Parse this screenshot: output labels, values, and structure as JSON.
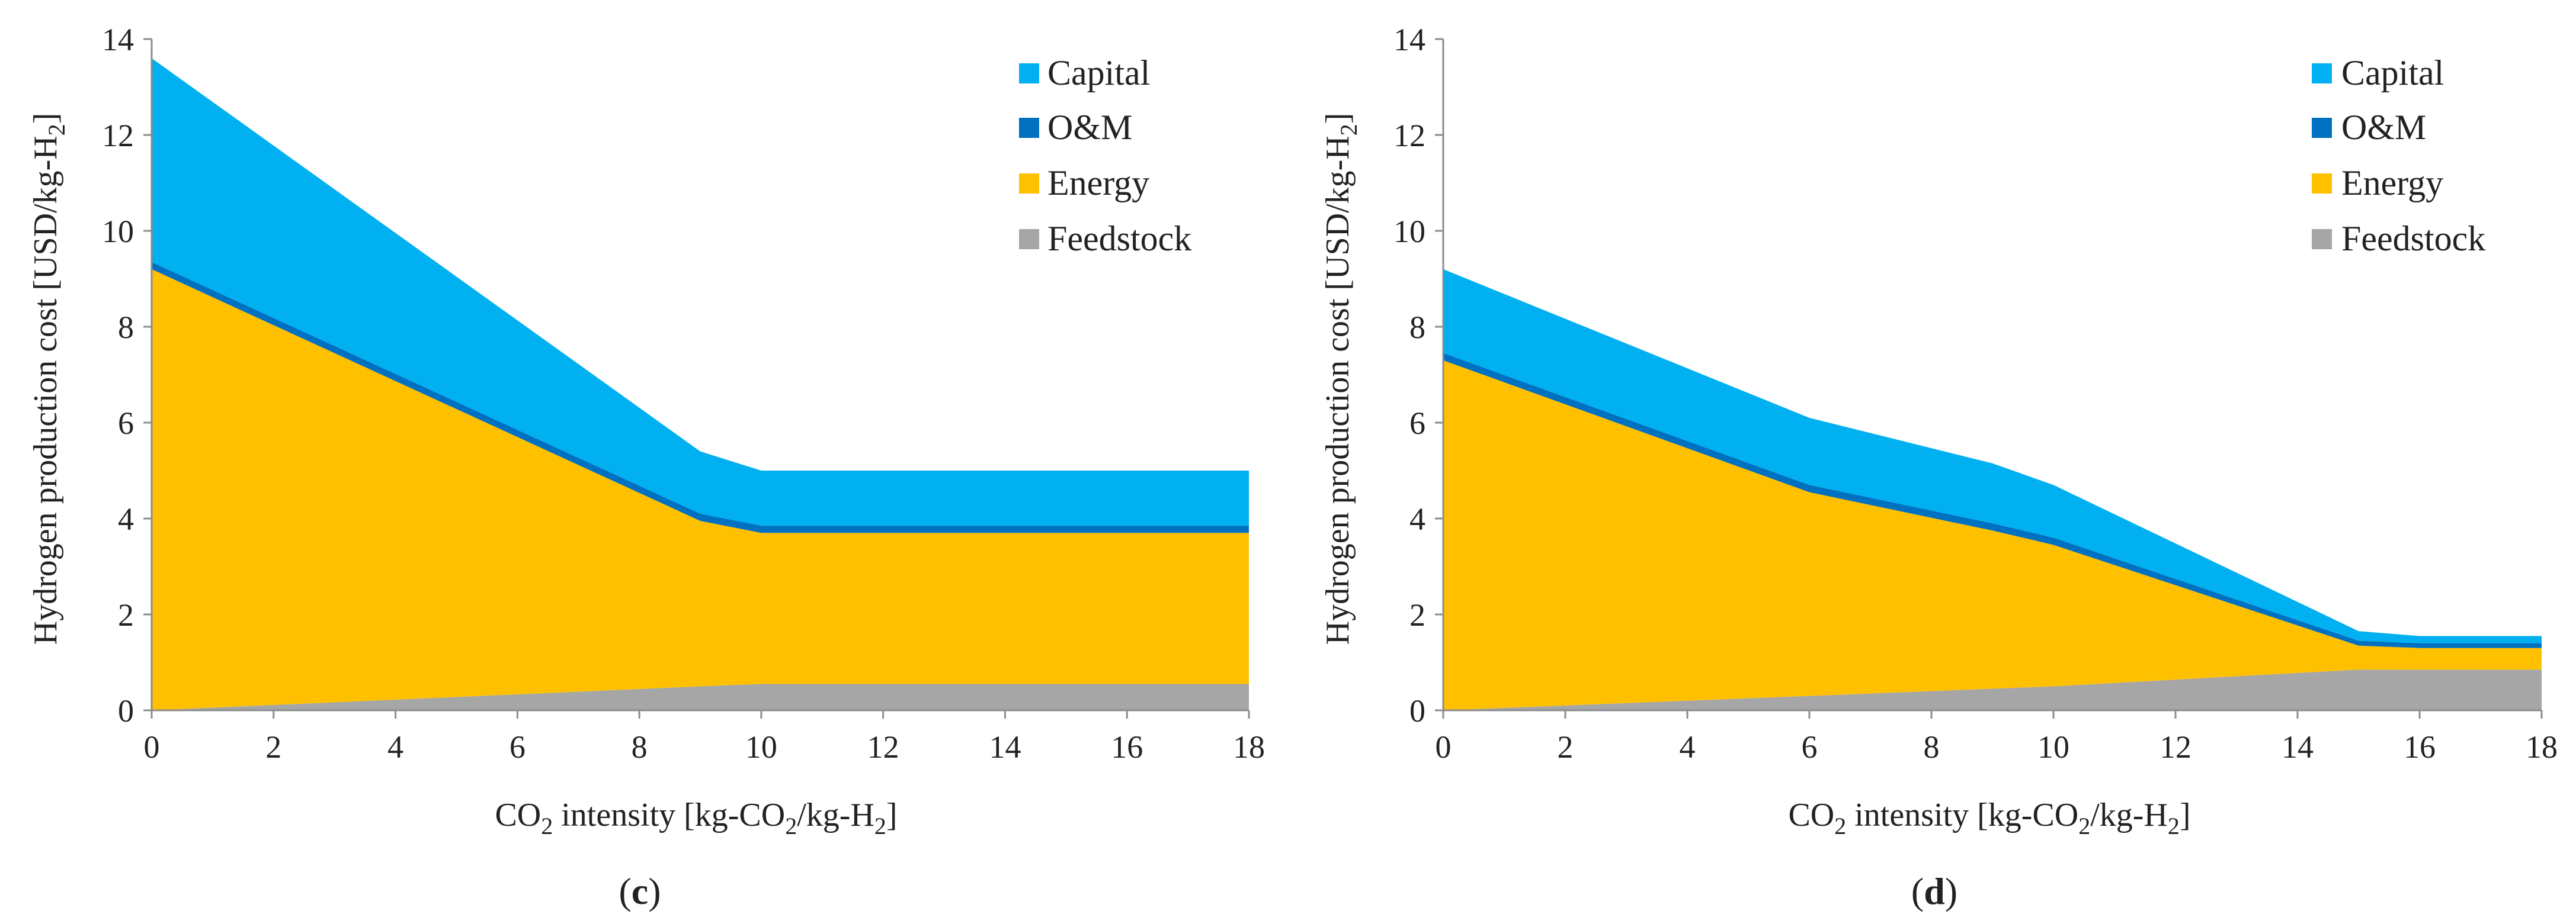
{
  "colors": {
    "Capital": "#00b0f0",
    "O&M": "#0070c0",
    "Energy": "#ffc000",
    "Feedstock": "#a6a6a6",
    "axis": "#8c8c8c"
  },
  "chart_data": [
    {
      "type": "area",
      "stacked": true,
      "panel_label": "(c)",
      "xlabel": "CO2 intensity [kg-CO2/kg-H2]",
      "ylabel": "Hydrogen production cost [USD/kg-H2]",
      "xlim": [
        0,
        18
      ],
      "ylim": [
        0,
        14
      ],
      "x_ticks": [
        0,
        2,
        4,
        6,
        8,
        10,
        12,
        14,
        16,
        18
      ],
      "y_ticks": [
        0,
        2,
        4,
        6,
        8,
        10,
        12,
        14
      ],
      "grid": false,
      "legend_position": "top-right",
      "x": [
        0,
        9,
        10,
        18
      ],
      "series": [
        {
          "name": "Feedstock",
          "values": [
            0.0,
            0.5,
            0.55,
            0.55
          ]
        },
        {
          "name": "Energy",
          "values": [
            9.2,
            3.45,
            3.15,
            3.15
          ]
        },
        {
          "name": "O&M",
          "values": [
            0.15,
            0.15,
            0.15,
            0.15
          ]
        },
        {
          "name": "Capital",
          "values": [
            4.25,
            1.3,
            1.15,
            1.15
          ]
        }
      ],
      "legend": [
        "Capital",
        "O&M",
        "Energy",
        "Feedstock"
      ]
    },
    {
      "type": "area",
      "stacked": true,
      "panel_label": "(d)",
      "xlabel": "CO2 intensity [kg-CO2/kg-H2]",
      "ylabel": "Hydrogen production cost [USD/kg-H2]",
      "xlim": [
        0,
        18
      ],
      "ylim": [
        0,
        14
      ],
      "x_ticks": [
        0,
        2,
        4,
        6,
        8,
        10,
        12,
        14,
        16,
        18
      ],
      "y_ticks": [
        0,
        2,
        4,
        6,
        8,
        10,
        12,
        14
      ],
      "grid": false,
      "legend_position": "top-right",
      "x": [
        0,
        6,
        9,
        10,
        15,
        16,
        18
      ],
      "series": [
        {
          "name": "Feedstock",
          "values": [
            0.0,
            0.3,
            0.45,
            0.5,
            0.85,
            0.85,
            0.85
          ]
        },
        {
          "name": "Energy",
          "values": [
            7.3,
            4.25,
            3.3,
            2.95,
            0.5,
            0.45,
            0.45
          ]
        },
        {
          "name": "O&M",
          "values": [
            0.15,
            0.15,
            0.15,
            0.15,
            0.1,
            0.1,
            0.1
          ]
        },
        {
          "name": "Capital",
          "values": [
            1.75,
            1.4,
            1.25,
            1.1,
            0.2,
            0.15,
            0.15
          ]
        }
      ],
      "legend": [
        "Capital",
        "O&M",
        "Energy",
        "Feedstock"
      ]
    }
  ]
}
